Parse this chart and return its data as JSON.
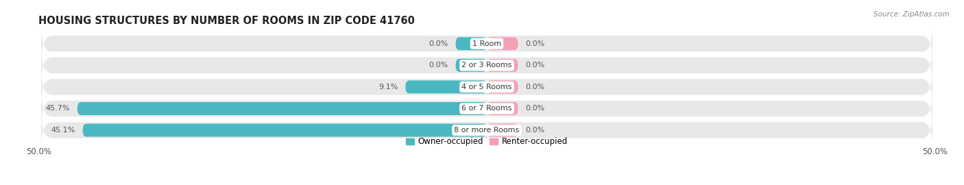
{
  "title": "HOUSING STRUCTURES BY NUMBER OF ROOMS IN ZIP CODE 41760",
  "source": "Source: ZipAtlas.com",
  "categories": [
    "1 Room",
    "2 or 3 Rooms",
    "4 or 5 Rooms",
    "6 or 7 Rooms",
    "8 or more Rooms"
  ],
  "owner_values": [
    0.0,
    0.0,
    9.1,
    45.7,
    45.1
  ],
  "renter_values": [
    0.0,
    0.0,
    0.0,
    0.0,
    0.0
  ],
  "owner_color": "#4ab8c1",
  "renter_color": "#f4a0b5",
  "row_bg_color": "#e8e8e8",
  "x_min": -50.0,
  "x_max": 50.0,
  "min_bar_width": 3.5,
  "title_fontsize": 10.5,
  "label_fontsize": 8.0,
  "axis_label_fontsize": 8.5,
  "legend_fontsize": 8.5
}
